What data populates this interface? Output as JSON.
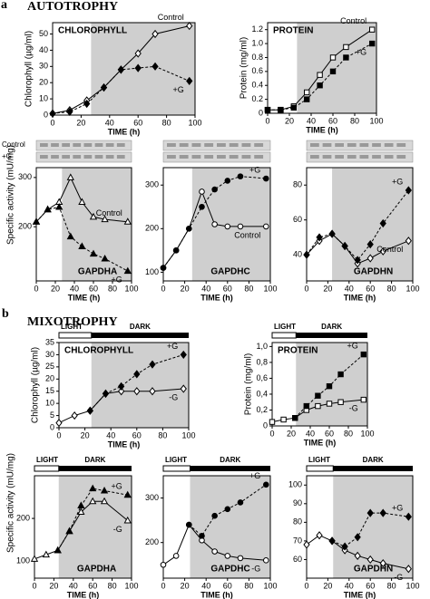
{
  "panels": [
    {
      "label": "a",
      "title": "AUTOTROPHY"
    },
    {
      "label": "b",
      "title": "MIXOTROPHY"
    }
  ],
  "chart_data": [
    {
      "type": "line",
      "title": "CHLOROPHYLL",
      "ylabel": "Chlorophyll (µg/ml)",
      "xlabel": "TIME (h)",
      "x": [
        0,
        12,
        24,
        36,
        48,
        60,
        72,
        96
      ],
      "xlim": [
        0,
        100
      ],
      "xticks": [
        0,
        20,
        40,
        60,
        80,
        100
      ],
      "ylim": [
        0,
        57
      ],
      "yticks": [
        0,
        10,
        20,
        30,
        40,
        50
      ],
      "dark_period": [
        27,
        100
      ],
      "series": [
        {
          "name": "Control",
          "color": "#000000",
          "marker": "diamond",
          "filled": false,
          "dash": false,
          "values": [
            1,
            3,
            9,
            17,
            28,
            38,
            50,
            55
          ]
        },
        {
          "name": "+G",
          "color": "#000000",
          "marker": "diamond",
          "filled": true,
          "dash": true,
          "values": [
            1,
            2,
            7,
            17,
            28,
            29,
            30,
            21
          ]
        }
      ]
    },
    {
      "type": "line",
      "title": "PROTEIN",
      "ylabel": "Protein (mg/ml)",
      "xlabel": "TIME (h)",
      "x": [
        0,
        12,
        24,
        36,
        48,
        60,
        72,
        96
      ],
      "xlim": [
        0,
        100
      ],
      "xticks": [
        0,
        20,
        40,
        60,
        80,
        100
      ],
      "ylim": [
        0,
        1.3
      ],
      "yticks": [
        0,
        0.2,
        0.4,
        0.6,
        0.8,
        {
          "value": 1,
          "label": "1.0"
        },
        1.2
      ],
      "dark_period": [
        27,
        100
      ],
      "series": [
        {
          "name": "Control",
          "color": "#000000",
          "marker": "square",
          "filled": false,
          "dash": false,
          "values": [
            0.05,
            0.05,
            0.1,
            0.3,
            0.55,
            0.8,
            0.95,
            1.2
          ]
        },
        {
          "name": "+G",
          "color": "#000000",
          "marker": "square",
          "filled": true,
          "dash": true,
          "values": [
            0.05,
            0.05,
            0.08,
            0.2,
            0.4,
            0.6,
            0.8,
            1.0
          ]
        }
      ]
    },
    {
      "type": "line",
      "title": "GAPDHA",
      "ylabel": "Specific activity (mU/mg)",
      "xlabel": "TIME (h)",
      "gel_labels": [
        "Control",
        "+G"
      ],
      "x": [
        0,
        12,
        24,
        36,
        48,
        60,
        72,
        96
      ],
      "xlim": [
        0,
        100
      ],
      "xticks": [
        0,
        20,
        40,
        60,
        80,
        100
      ],
      "ylim": [
        90,
        320
      ],
      "yticks": [
        200,
        300
      ],
      "dark_period": [
        27,
        100
      ],
      "series": [
        {
          "name": "Control",
          "color": "#000000",
          "marker": "triangle",
          "filled": false,
          "dash": false,
          "values": [
            210,
            235,
            250,
            300,
            250,
            220,
            215,
            210
          ]
        },
        {
          "name": "+G",
          "color": "#000000",
          "marker": "triangle",
          "filled": true,
          "dash": true,
          "values": [
            210,
            235,
            240,
            180,
            160,
            145,
            135,
            110
          ]
        }
      ]
    },
    {
      "type": "line",
      "title": "GAPDHC",
      "xlabel": "TIME (h)",
      "x": [
        0,
        12,
        24,
        36,
        48,
        60,
        72,
        96
      ],
      "xlim": [
        0,
        100
      ],
      "xticks": [
        0,
        20,
        40,
        60,
        80,
        100
      ],
      "ylim": [
        80,
        340
      ],
      "yticks": [
        100,
        200,
        300
      ],
      "dark_period": [
        27,
        100
      ],
      "series": [
        {
          "name": "Control",
          "color": "#000000",
          "marker": "circle",
          "filled": false,
          "dash": false,
          "values": [
            110,
            150,
            200,
            285,
            210,
            205,
            205,
            205
          ]
        },
        {
          "name": "+G",
          "color": "#000000",
          "marker": "circle",
          "filled": true,
          "dash": true,
          "values": [
            110,
            150,
            200,
            250,
            290,
            310,
            320,
            315
          ]
        }
      ]
    },
    {
      "type": "line",
      "title": "GAPDHN",
      "xlabel": "TIME (h)",
      "x": [
        0,
        12,
        24,
        36,
        48,
        60,
        72,
        96
      ],
      "xlim": [
        0,
        100
      ],
      "xticks": [
        0,
        20,
        40,
        60,
        80,
        100
      ],
      "ylim": [
        25,
        90
      ],
      "yticks": [
        40,
        60,
        80
      ],
      "dark_period": [
        24,
        100
      ],
      "series": [
        {
          "name": "Control",
          "color": "#000000",
          "marker": "diamond",
          "filled": false,
          "dash": false,
          "values": [
            40,
            48,
            52,
            45,
            35,
            38,
            42,
            48
          ]
        },
        {
          "name": "+G",
          "color": "#000000",
          "marker": "diamond",
          "filled": true,
          "dash": true,
          "values": [
            40,
            50,
            52,
            45,
            37,
            46,
            58,
            77
          ]
        }
      ]
    },
    {
      "type": "line",
      "title": "CHLOROPHYLL",
      "ylabel": "Chlorophyll (µg/ml)",
      "xlabel": "TIME (h)",
      "light_dark": [
        "LIGHT",
        "DARK"
      ],
      "x": [
        0,
        12,
        24,
        36,
        48,
        60,
        72,
        96
      ],
      "xlim": [
        0,
        100
      ],
      "xticks": [
        0,
        20,
        40,
        60,
        80,
        100
      ],
      "ylim": [
        0,
        35
      ],
      "yticks": [
        0,
        5,
        10,
        15,
        20,
        25,
        30,
        35
      ],
      "dark_period": [
        25,
        100
      ],
      "series": [
        {
          "name": "-G",
          "color": "#000000",
          "marker": "diamond",
          "filled": false,
          "dash": false,
          "values": [
            2,
            5,
            7,
            14,
            15,
            15,
            15,
            16
          ]
        },
        {
          "name": "+G",
          "color": "#000000",
          "marker": "diamond",
          "filled": true,
          "dash": true,
          "values": [
            null,
            null,
            7,
            14,
            17,
            22,
            26,
            30
          ]
        }
      ]
    },
    {
      "type": "line",
      "title": "PROTEIN",
      "ylabel": "Protein (mg/ml)",
      "xlabel": "TIME (h)",
      "light_dark": [
        "LIGHT",
        "DARK"
      ],
      "x": [
        0,
        12,
        24,
        36,
        48,
        60,
        72,
        96
      ],
      "xlim": [
        0,
        100
      ],
      "xticks": [
        0,
        20,
        40,
        60,
        80,
        100
      ],
      "ylim": [
        0,
        1.05
      ],
      "yticks": [
        0,
        {
          "value": 0.2,
          "label": "0,2"
        },
        {
          "value": 0.4,
          "label": "0,4"
        },
        {
          "value": 0.6,
          "label": "0,6"
        },
        {
          "value": 0.8,
          "label": "0,8"
        },
        {
          "value": 1,
          "label": "1,0"
        }
      ],
      "dark_period": [
        25,
        100
      ],
      "series": [
        {
          "name": "-G",
          "color": "#000000",
          "marker": "square",
          "filled": false,
          "dash": false,
          "values": [
            0.05,
            0.08,
            0.1,
            0.2,
            0.25,
            0.28,
            0.3,
            0.33
          ]
        },
        {
          "name": "+G",
          "color": "#000000",
          "marker": "square",
          "filled": true,
          "dash": true,
          "values": [
            null,
            null,
            0.1,
            0.25,
            0.38,
            0.5,
            0.65,
            0.9
          ]
        }
      ]
    },
    {
      "type": "line",
      "title": "GAPDHA",
      "ylabel": "Specific activity (mU/mg)",
      "xlabel": "TIME (h)",
      "light_dark": [
        "LIGHT",
        "DARK"
      ],
      "x": [
        0,
        12,
        24,
        36,
        48,
        60,
        72,
        96
      ],
      "xlim": [
        0,
        100
      ],
      "xticks": [
        0,
        20,
        40,
        60,
        80,
        100
      ],
      "ylim": [
        60,
        300
      ],
      "yticks": [
        100,
        200
      ],
      "dark_period": [
        25,
        100
      ],
      "series": [
        {
          "name": "-G",
          "color": "#000000",
          "marker": "triangle",
          "filled": false,
          "dash": false,
          "values": [
            105,
            115,
            125,
            170,
            215,
            240,
            240,
            195
          ]
        },
        {
          "name": "+G",
          "color": "#000000",
          "marker": "triangle",
          "filled": true,
          "dash": true,
          "values": [
            null,
            null,
            125,
            170,
            230,
            270,
            265,
            255
          ]
        }
      ]
    },
    {
      "type": "line",
      "title": "GAPDHC",
      "xlabel": "TIME (h)",
      "light_dark": [
        "LIGHT",
        "DARK"
      ],
      "x": [
        0,
        12,
        24,
        36,
        48,
        60,
        72,
        96
      ],
      "xlim": [
        0,
        100
      ],
      "xticks": [
        0,
        20,
        40,
        60,
        80,
        100
      ],
      "ylim": [
        120,
        350
      ],
      "yticks": [
        200,
        300
      ],
      "dark_period": [
        25,
        100
      ],
      "series": [
        {
          "name": "-G",
          "color": "#000000",
          "marker": "circle",
          "filled": false,
          "dash": false,
          "values": [
            150,
            170,
            240,
            205,
            180,
            170,
            165,
            160
          ]
        },
        {
          "name": "+G",
          "color": "#000000",
          "marker": "circle",
          "filled": true,
          "dash": true,
          "values": [
            null,
            null,
            240,
            215,
            260,
            275,
            290,
            330
          ]
        }
      ]
    },
    {
      "type": "line",
      "title": "GAPDHN",
      "xlabel": "TIME (h)",
      "light_dark": [
        "LIGHT",
        "DARK"
      ],
      "x": [
        0,
        12,
        24,
        36,
        48,
        60,
        72,
        96
      ],
      "xlim": [
        0,
        100
      ],
      "xticks": [
        0,
        20,
        40,
        60,
        80,
        100
      ],
      "ylim": [
        50,
        105
      ],
      "yticks": [
        60,
        70,
        80,
        90,
        100
      ],
      "dark_period": [
        25,
        100
      ],
      "series": [
        {
          "name": "-G",
          "color": "#000000",
          "marker": "diamond",
          "filled": false,
          "dash": false,
          "values": [
            68,
            73,
            70,
            65,
            62,
            60,
            58,
            55
          ]
        },
        {
          "name": "+G",
          "color": "#000000",
          "marker": "diamond",
          "filled": true,
          "dash": true,
          "values": [
            null,
            null,
            70,
            67,
            72,
            85,
            85,
            83
          ]
        }
      ]
    }
  ]
}
